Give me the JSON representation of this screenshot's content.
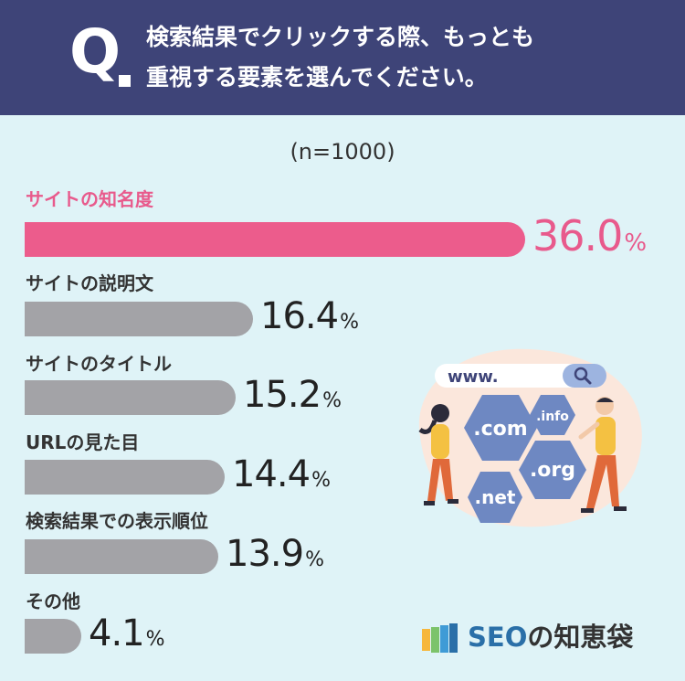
{
  "question": {
    "mark": "Q",
    "line1": "検索結果でクリックする際、もっとも",
    "line2": "重視する要素を選んでください。"
  },
  "sample_size": "(n=1000)",
  "chart_data": {
    "type": "bar",
    "orientation": "horizontal",
    "title": "検索結果でクリックする際、もっとも重視する要素を選んでください。",
    "subtitle": "(n=1000)",
    "unit": "%",
    "categories": [
      "サイトの知名度",
      "サイトの説明文",
      "サイトのタイトル",
      "URLの見た目",
      "検索結果での表示順位",
      "その他"
    ],
    "values": [
      36.0,
      16.4,
      15.2,
      14.4,
      13.9,
      4.1
    ],
    "value_labels": [
      "36.0",
      "16.4",
      "15.2",
      "14.4",
      "13.9",
      "4.1"
    ],
    "highlight_index": 0,
    "xlim": [
      0,
      36.0
    ],
    "grid": false,
    "colors": {
      "highlight": "#ec5c8c",
      "default": "#a3a3a7",
      "highlight_text": "#e85a8c"
    }
  },
  "illustration": {
    "search_text": "www.",
    "domains": [
      ".com",
      ".info",
      ".org",
      ".net"
    ]
  },
  "logo": {
    "brand_seo": "SEO",
    "brand_rest": "の知恵袋"
  },
  "colors": {
    "header_bg": "#3e4478",
    "page_bg": "#dff3f7",
    "hex_fill": "#6e88c2",
    "logo_accent": "#2a6fa8"
  }
}
